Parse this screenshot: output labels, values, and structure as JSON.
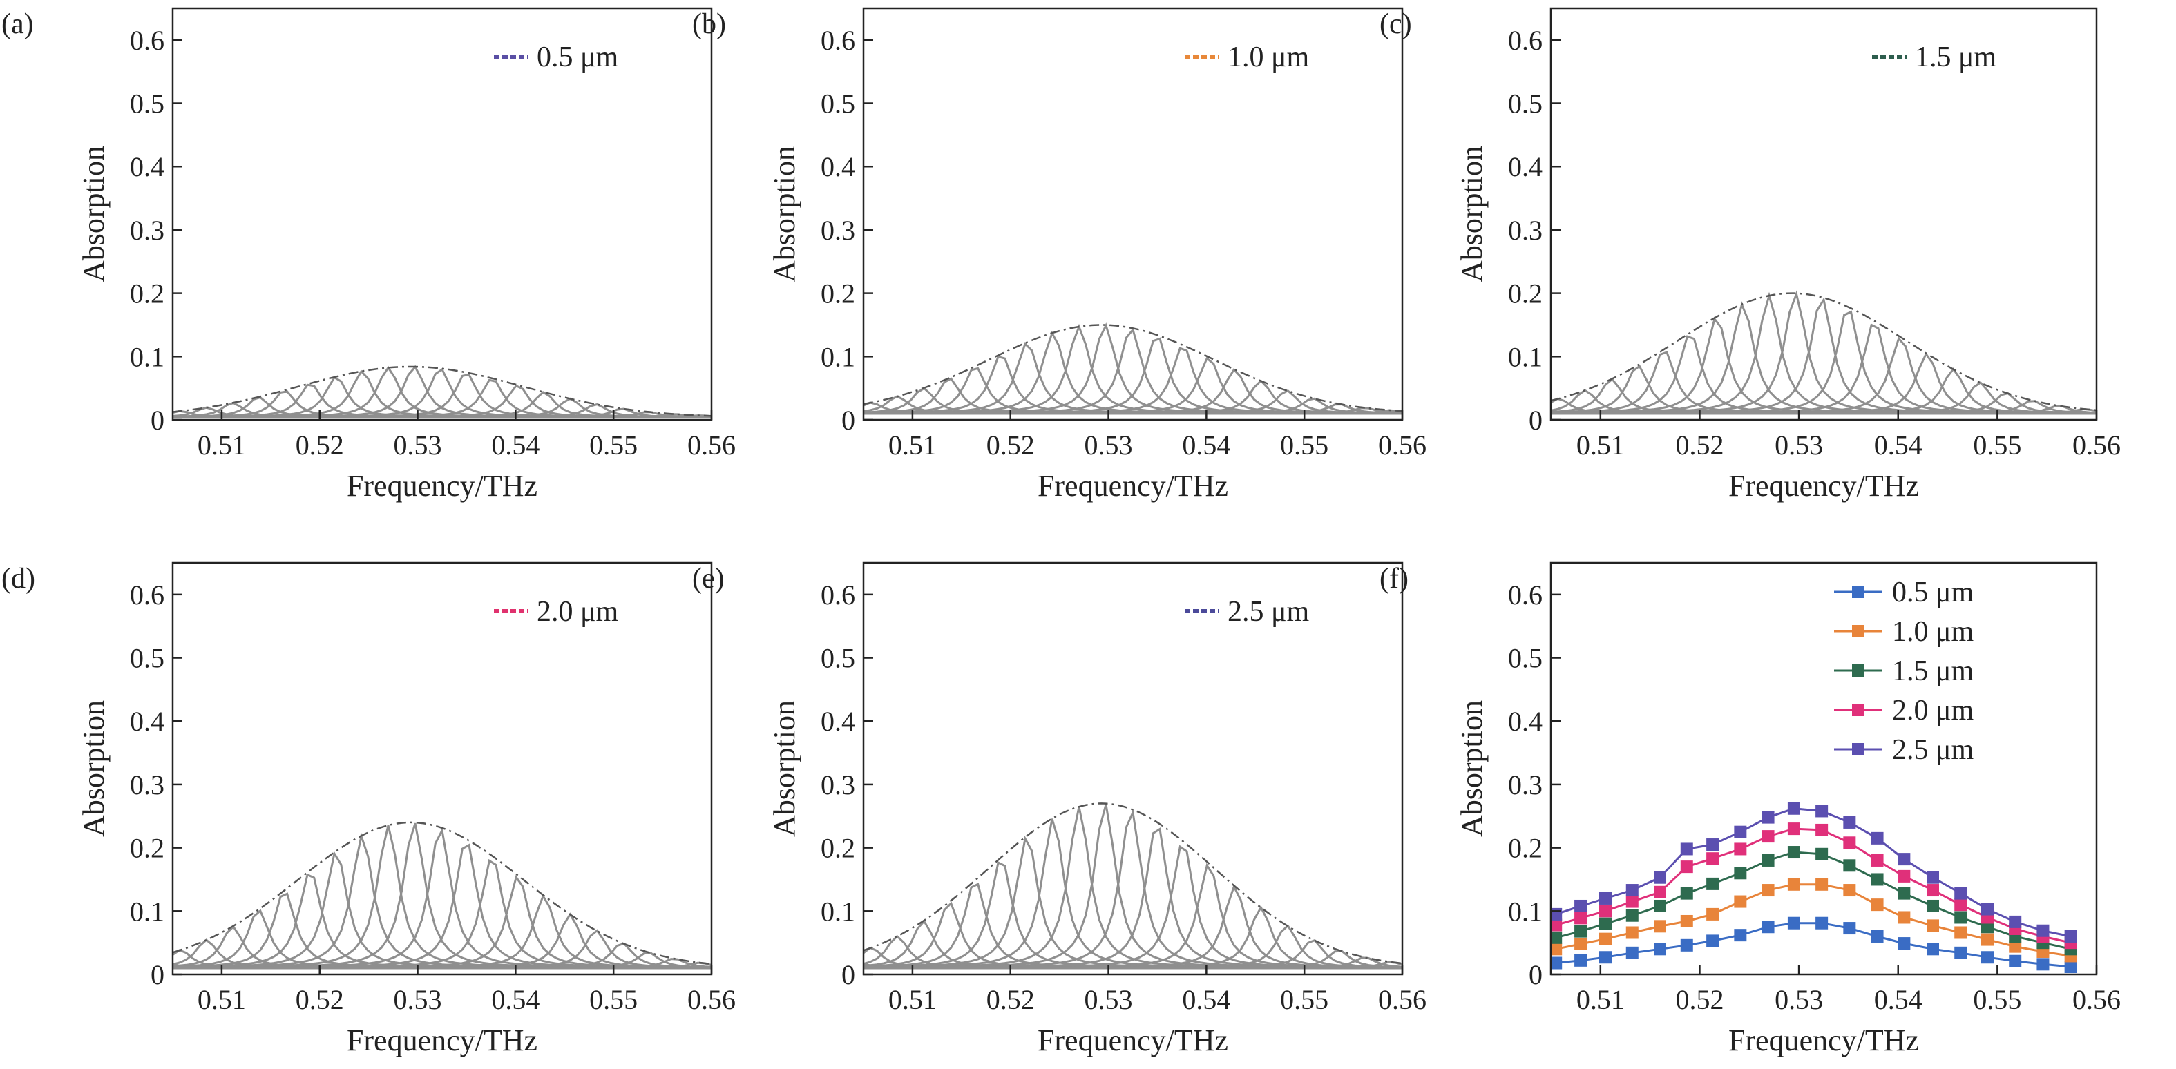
{
  "figure": {
    "panels": [
      {
        "id": "a",
        "tag": "(a)",
        "legend": "0.5 μm",
        "color": "#5a4fa5",
        "amp": 0.08,
        "base": 0.008
      },
      {
        "id": "b",
        "tag": "(b)",
        "legend": "1.0 μm",
        "color": "#e8883a",
        "amp": 0.14,
        "base": 0.02
      },
      {
        "id": "c",
        "tag": "(c)",
        "legend": "1.5 μm",
        "color": "#2e5e4e",
        "amp": 0.19,
        "base": 0.02
      },
      {
        "id": "d",
        "tag": "(d)",
        "legend": "2.0 μm",
        "color": "#e0326e",
        "amp": 0.23,
        "base": 0.02
      },
      {
        "id": "e",
        "tag": "(e)",
        "legend": "2.5 μm",
        "color": "#4b4a9a",
        "amp": 0.26,
        "base": 0.02
      },
      {
        "id": "f",
        "tag": "(f)",
        "legend": null
      }
    ]
  },
  "chart_data": {
    "type": "line",
    "xlabel": "Frequency/THz",
    "ylabel": "Absorption",
    "xlim": [
      0.505,
      0.56
    ],
    "ylim": [
      0,
      0.65
    ],
    "xticks": [
      0.51,
      0.52,
      0.53,
      0.54,
      0.55,
      0.56
    ],
    "yticks": [
      0,
      0.1,
      0.2,
      0.3,
      0.4,
      0.5,
      0.6
    ],
    "xtick_labels": [
      "0.51",
      "0.52",
      "0.53",
      "0.54",
      "0.55",
      "0.56"
    ],
    "ytick_labels": [
      "0",
      "0.1",
      "0.2",
      "0.3",
      "0.4",
      "0.5",
      "0.6"
    ],
    "series": [
      {
        "name": "0.5 μm",
        "color": "#3a6cc4",
        "x": [
          0.5055,
          0.508,
          0.5105,
          0.5132,
          0.516,
          0.5187,
          0.5213,
          0.5241,
          0.5269,
          0.5295,
          0.5323,
          0.5351,
          0.5379,
          0.5406,
          0.5435,
          0.5463,
          0.549,
          0.5518,
          0.5546,
          0.5574
        ],
        "y": [
          0.018,
          0.022,
          0.027,
          0.034,
          0.04,
          0.046,
          0.053,
          0.062,
          0.075,
          0.081,
          0.081,
          0.073,
          0.06,
          0.049,
          0.04,
          0.034,
          0.027,
          0.021,
          0.016,
          0.012
        ]
      },
      {
        "name": "1.0 μm",
        "color": "#e8843a",
        "x": [
          0.5055,
          0.508,
          0.5105,
          0.5132,
          0.516,
          0.5187,
          0.5213,
          0.5241,
          0.5269,
          0.5295,
          0.5323,
          0.5351,
          0.5379,
          0.5406,
          0.5435,
          0.5463,
          0.549,
          0.5518,
          0.5546,
          0.5574
        ],
        "y": [
          0.04,
          0.048,
          0.056,
          0.066,
          0.076,
          0.084,
          0.095,
          0.115,
          0.133,
          0.142,
          0.142,
          0.133,
          0.11,
          0.09,
          0.077,
          0.066,
          0.055,
          0.044,
          0.036,
          0.029
        ]
      },
      {
        "name": "1.5 μm",
        "color": "#2e6b4f",
        "x": [
          0.5055,
          0.508,
          0.5105,
          0.5132,
          0.516,
          0.5187,
          0.5213,
          0.5241,
          0.5269,
          0.5295,
          0.5323,
          0.5351,
          0.5379,
          0.5406,
          0.5435,
          0.5463,
          0.549,
          0.5518,
          0.5546,
          0.5574
        ],
        "y": [
          0.058,
          0.068,
          0.08,
          0.093,
          0.108,
          0.128,
          0.143,
          0.16,
          0.18,
          0.193,
          0.19,
          0.172,
          0.15,
          0.128,
          0.108,
          0.09,
          0.075,
          0.06,
          0.05,
          0.04
        ]
      },
      {
        "name": "2.0 μm",
        "color": "#e0307a",
        "x": [
          0.5055,
          0.508,
          0.5105,
          0.5132,
          0.516,
          0.5187,
          0.5213,
          0.5241,
          0.5269,
          0.5295,
          0.5323,
          0.5351,
          0.5379,
          0.5406,
          0.5435,
          0.5463,
          0.549,
          0.5518,
          0.5546,
          0.5574
        ],
        "y": [
          0.078,
          0.089,
          0.1,
          0.115,
          0.13,
          0.17,
          0.183,
          0.198,
          0.218,
          0.23,
          0.228,
          0.208,
          0.18,
          0.155,
          0.133,
          0.11,
          0.09,
          0.072,
          0.06,
          0.05
        ]
      },
      {
        "name": "2.5 μm",
        "color": "#5b4fb0",
        "x": [
          0.5055,
          0.508,
          0.5105,
          0.5132,
          0.516,
          0.5187,
          0.5213,
          0.5241,
          0.5269,
          0.5295,
          0.5323,
          0.5351,
          0.5379,
          0.5406,
          0.5435,
          0.5463,
          0.549,
          0.5518,
          0.5546,
          0.5574
        ],
        "y": [
          0.095,
          0.108,
          0.12,
          0.133,
          0.153,
          0.198,
          0.205,
          0.225,
          0.248,
          0.262,
          0.258,
          0.24,
          0.215,
          0.182,
          0.153,
          0.128,
          0.103,
          0.083,
          0.069,
          0.06
        ]
      }
    ]
  }
}
